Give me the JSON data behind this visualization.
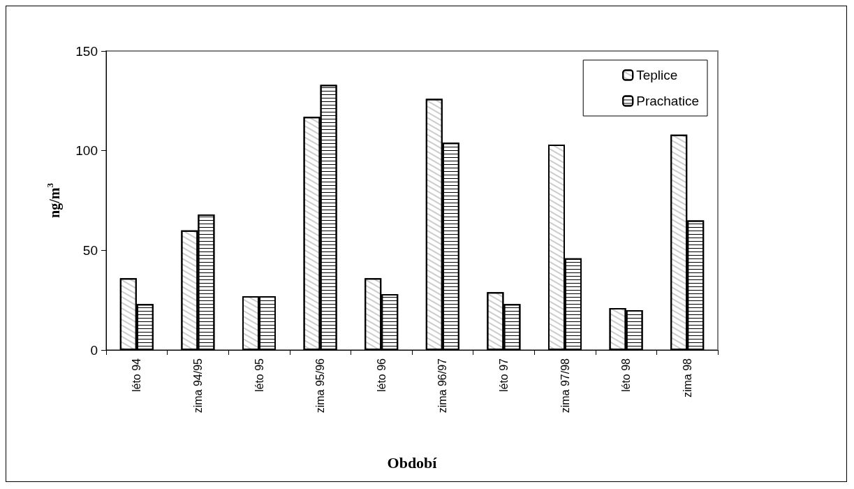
{
  "chart_data": {
    "type": "bar",
    "xlabel": "Období",
    "ylabel": "ng/m$^{3}$",
    "categories": [
      "léto 94",
      "zima 94/95",
      "léto 95",
      "zima 95/96",
      "léto 96",
      "zima 96/97",
      "léto 97",
      "zima 97/98",
      "léto 98",
      "zima 98"
    ],
    "series": [
      {
        "name": "Teplice",
        "color": "#ffffff",
        "values": [
          36,
          60,
          27,
          117,
          36,
          126,
          29,
          103,
          21,
          108
        ]
      },
      {
        "name": "Prachatice",
        "color": "#ffffff",
        "values": [
          23,
          68,
          27,
          133,
          28,
          104,
          23,
          46,
          20,
          65
        ]
      }
    ],
    "ylim": [
      0,
      150
    ],
    "yticks": [
      0,
      50,
      100,
      150
    ],
    "grid": false,
    "legend": "top right"
  }
}
